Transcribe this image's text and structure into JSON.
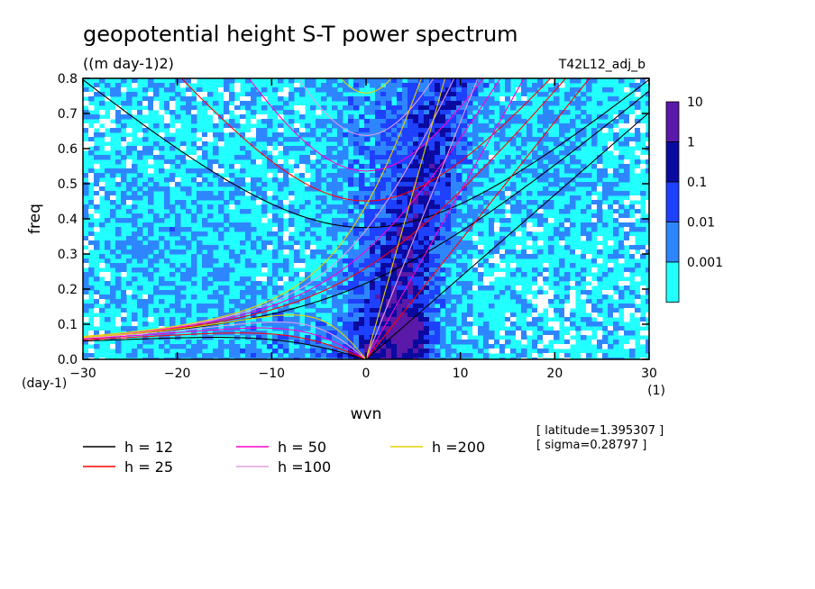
{
  "chart_data": {
    "type": "heatmap",
    "title": "geopotential height S-T power spectrum",
    "subtitle": "((m day-1)2)",
    "run_label": "T42L12_adj_b",
    "xlabel": "wvn",
    "ylabel": "freq",
    "x_unit": "(1)",
    "y_unit": "(day-1)",
    "xlim": [
      -30,
      30
    ],
    "ylim": [
      0,
      0.8
    ],
    "xticks": [
      -30,
      -20,
      -10,
      0,
      10,
      20,
      30
    ],
    "yticks": [
      0.0,
      0.1,
      0.2,
      0.3,
      0.4,
      0.5,
      0.6,
      0.7,
      0.8
    ],
    "xtick_labels": [
      "-30",
      "-20",
      "-10",
      "0",
      "10",
      "20",
      "30"
    ],
    "ytick_labels": [
      "0.0",
      "0.1",
      "0.2",
      "0.3",
      "0.4",
      "0.5",
      "0.6",
      "0.7",
      "0.8"
    ],
    "colorbar": {
      "levels": [
        "10",
        "1",
        "0.1",
        "0.01",
        "0.001"
      ],
      "colors": [
        "#5a19a8",
        "#0a0aa0",
        "#1e40ff",
        "#2e86ff",
        "#22ffff"
      ]
    },
    "band_colors": {
      "below_0.001": "#ffffff",
      "0.001-0.01": "#22ffff",
      "0.01-0.1": "#2e86ff",
      "0.1-1": "#1e40ff",
      "1-10": "#0a0aa0",
      "10+": "#5a19a8"
    },
    "dispersion_curves": [
      {
        "label": "h = 12",
        "color": "#000000"
      },
      {
        "label": "h = 25",
        "color": "#ff0000"
      },
      {
        "label": "h = 50",
        "color": "#ff00cc"
      },
      {
        "label": "h =100",
        "color": "#e29ee2"
      },
      {
        "label": "h =200",
        "color": "#e6d200"
      }
    ],
    "info_lines": [
      "[ latitude=1.395307 ]",
      "[ sigma=0.28797 ]"
    ]
  }
}
